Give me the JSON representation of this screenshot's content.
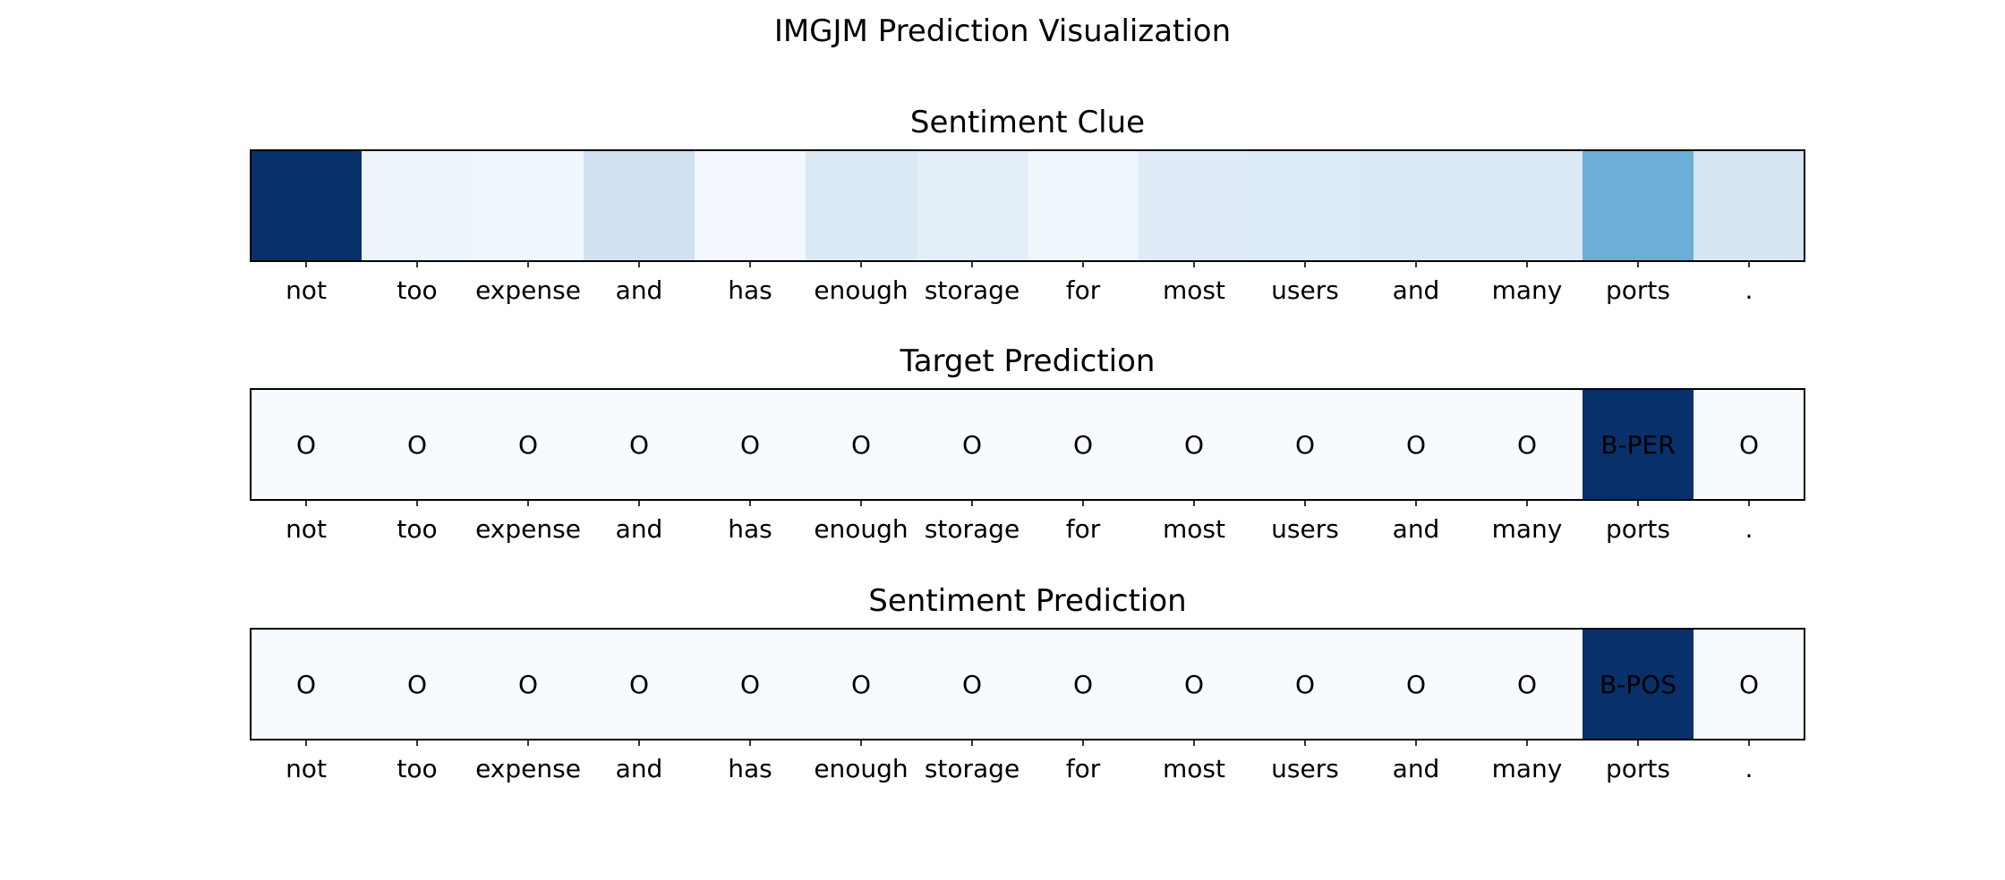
{
  "chart_data": {
    "suptitle": "IMGJM Prediction Visualization",
    "tokens": [
      "not",
      "too",
      "expense",
      "and",
      "has",
      "enough",
      "storage",
      "for",
      "most",
      "users",
      "and",
      "many",
      "ports",
      "."
    ],
    "colormap": "Blues",
    "panels": [
      {
        "type": "heatmap",
        "title": "Sentiment Clue",
        "values": [
          1.0,
          0.05,
          0.04,
          0.2,
          0.02,
          0.14,
          0.1,
          0.04,
          0.12,
          0.13,
          0.14,
          0.14,
          0.5,
          0.17
        ],
        "cell_labels": []
      },
      {
        "type": "heatmap",
        "title": "Target Prediction",
        "values": [
          0,
          0,
          0,
          0,
          0,
          0,
          0,
          0,
          0,
          0,
          0,
          0,
          1,
          0
        ],
        "cell_labels": [
          "O",
          "O",
          "O",
          "O",
          "O",
          "O",
          "O",
          "O",
          "O",
          "O",
          "O",
          "O",
          "B-PER",
          "O"
        ]
      },
      {
        "type": "heatmap",
        "title": "Sentiment Prediction",
        "values": [
          0,
          0,
          0,
          0,
          0,
          0,
          0,
          0,
          0,
          0,
          0,
          0,
          1,
          0
        ],
        "cell_labels": [
          "O",
          "O",
          "O",
          "O",
          "O",
          "O",
          "O",
          "O",
          "O",
          "O",
          "O",
          "O",
          "B-POS",
          "O"
        ]
      }
    ]
  }
}
